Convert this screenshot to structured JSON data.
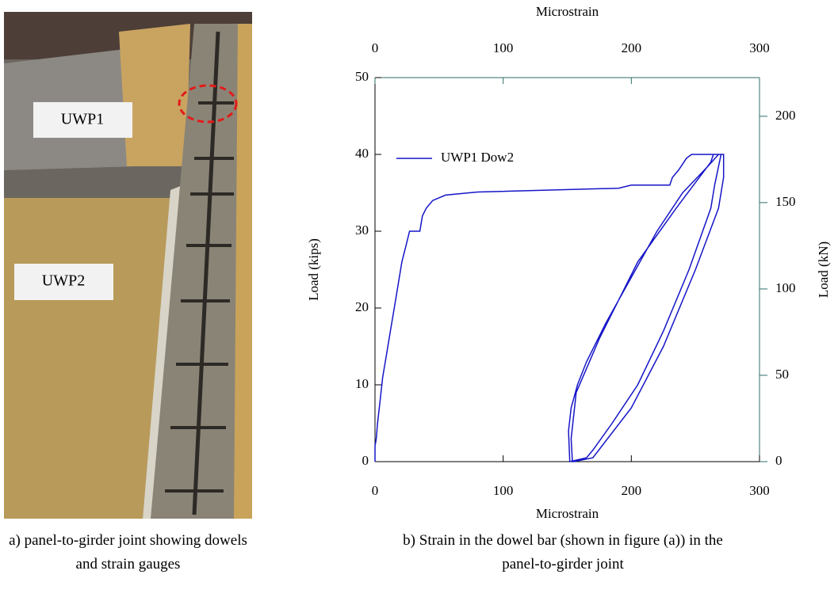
{
  "figure": {
    "photo_labels": [
      "UWP1",
      "UWP2"
    ],
    "photo_caption": "a) panel-to-girder joint showing dowels and strain gauges",
    "chart_caption": "b) Strain in the dowel bar (shown in figure (a)) in the panel-to-girder joint"
  },
  "chart_data": {
    "type": "line",
    "xlabel": "Microstrain",
    "x2label": "Microstrain",
    "ylabel": "Load (kips)",
    "y2label": "Load (kN)",
    "xlim": [
      0,
      300
    ],
    "xticks": [
      0,
      100,
      200,
      300
    ],
    "x2lim": [
      0,
      300
    ],
    "x2ticks": [
      0,
      100,
      200,
      300
    ],
    "ylim": [
      0,
      50
    ],
    "yticks": [
      0,
      10,
      20,
      30,
      40,
      50
    ],
    "y2lim": [
      0,
      222.4
    ],
    "y2ticks": [
      0,
      50,
      100,
      150,
      200
    ],
    "legend": "upper left",
    "x": [
      0,
      0,
      1,
      2,
      4,
      6,
      9,
      12,
      15,
      18,
      21,
      24,
      27,
      35,
      36,
      37,
      40,
      45,
      55,
      80,
      190,
      200,
      230,
      232,
      237,
      243,
      247,
      270,
      265,
      262,
      245,
      225,
      205,
      185,
      170,
      165,
      152,
      151,
      153,
      158,
      165,
      180,
      200,
      220,
      240,
      260,
      268,
      272,
      272,
      268,
      250,
      225,
      200,
      170,
      155,
      154,
      153,
      157,
      175,
      205,
      235,
      262,
      264
    ],
    "series": [
      {
        "name": "UWP1 Dow2",
        "color": "#1515c8",
        "values": [
          0,
          2,
          3,
          5,
          8,
          11,
          14,
          17,
          20,
          23,
          26,
          28,
          30,
          30,
          31,
          32,
          33,
          34,
          34.7,
          35.1,
          35.6,
          36,
          36,
          37,
          38,
          39.5,
          40,
          40,
          36,
          33,
          25,
          17,
          10,
          5,
          1.5,
          0.5,
          0,
          4,
          7,
          10,
          13,
          18,
          24,
          30,
          35,
          38.5,
          40,
          40,
          37,
          33,
          25,
          15,
          7,
          0.5,
          0,
          0,
          3,
          9,
          16,
          26,
          33,
          39,
          40
        ]
      }
    ]
  }
}
